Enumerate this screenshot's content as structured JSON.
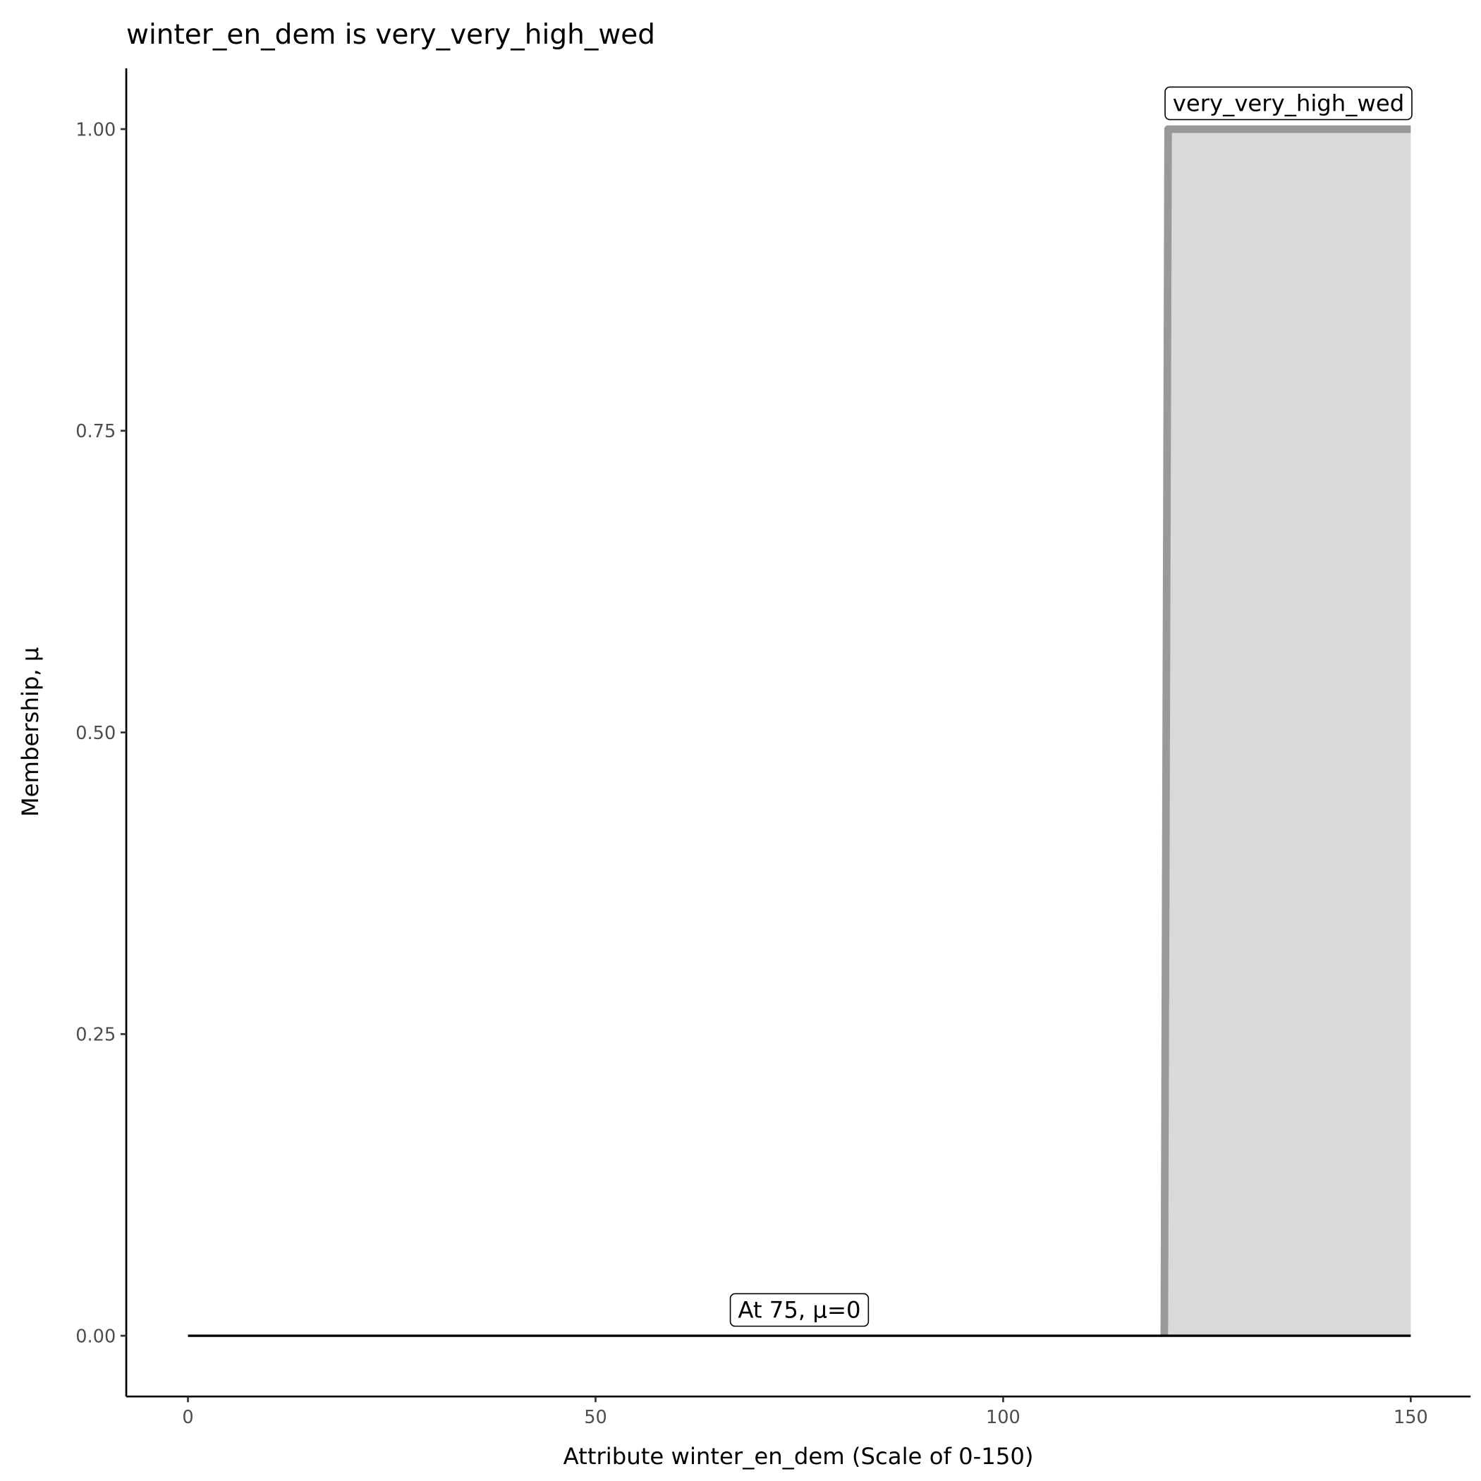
{
  "chart_data": {
    "type": "area",
    "title": "winter_en_dem is very_very_high_wed",
    "xlabel": "Attribute winter_en_dem (Scale of 0-150)",
    "ylabel": "Membership, μ",
    "xlim": [
      -7.5,
      157.5
    ],
    "ylim": [
      -0.05,
      1.05
    ],
    "x_ticks": [
      0,
      50,
      100,
      150
    ],
    "x_tick_labels": [
      "0",
      "50",
      "100",
      "150"
    ],
    "y_ticks": [
      0,
      0.25,
      0.5,
      0.75,
      1
    ],
    "y_tick_labels": [
      "0.00",
      "0.25",
      "0.50",
      "0.75",
      "1.00"
    ],
    "grid": false,
    "series": [
      {
        "name": "very_very_high_wed",
        "x": [
          120,
          120,
          150
        ],
        "y": [
          0,
          1,
          1
        ],
        "fill": "#d9d9d9",
        "stroke": "#999999"
      }
    ],
    "evaluation_line": {
      "x": [
        0,
        150
      ],
      "y": [
        0,
        0
      ],
      "color": "#000000"
    },
    "annotations": [
      {
        "text": "very_very_high_wed",
        "x": 135,
        "y": 1
      },
      {
        "text": "At 75, μ=0",
        "x": 75,
        "y": 0
      }
    ]
  }
}
